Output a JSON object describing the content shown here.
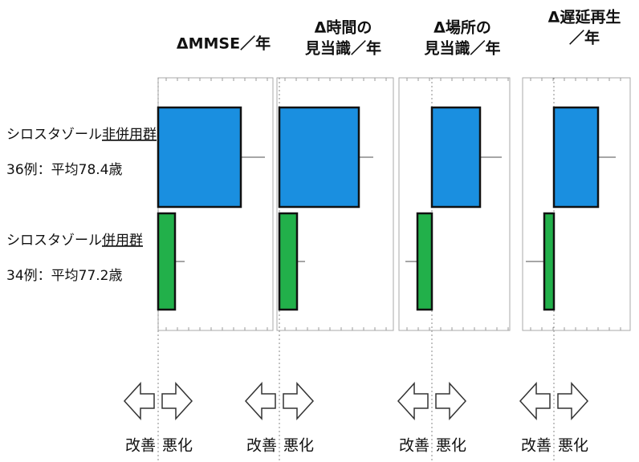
{
  "row_labels": [
    {
      "name": "シロスタゾール",
      "group": "非併用群",
      "detail": "36例：平均78.4歳"
    },
    {
      "name": "シロスタゾール",
      "group": "併用群",
      "detail": "34例：平均77.2歳"
    }
  ],
  "chart_data": [
    {
      "type": "hbar",
      "title": [
        "ΔMMSE／年"
      ],
      "xlim": [
        0,
        143
      ],
      "values": [
        103,
        21
      ],
      "errors": [
        30,
        12
      ],
      "colors": [
        "#1a8fe0",
        "#22b04a"
      ],
      "direction_labels": [
        "改善",
        "悪化"
      ]
    },
    {
      "type": "hbar",
      "title": [
        "Δ時間の",
        "見当識／年"
      ],
      "xlim": [
        -3,
        142
      ],
      "values": [
        99,
        22
      ],
      "errors": [
        18,
        10
      ],
      "colors": [
        "#1a8fe0",
        "#22b04a"
      ],
      "direction_labels": [
        "改善",
        "悪化"
      ]
    },
    {
      "type": "hbar",
      "title": [
        "Δ場所の",
        "見当識／年"
      ],
      "xlim": [
        -41,
        97
      ],
      "values": [
        60,
        -18
      ],
      "errors": [
        27,
        15
      ],
      "colors": [
        "#1a8fe0",
        "#22b04a"
      ],
      "direction_labels": [
        "改善",
        "悪化"
      ]
    },
    {
      "type": "hbar",
      "title": [
        "Δ遅延再生",
        "／年"
      ],
      "xlim": [
        -39,
        95
      ],
      "values": [
        55,
        -12
      ],
      "errors": [
        22,
        23
      ],
      "colors": [
        "#1a8fe0",
        "#22b04a"
      ],
      "direction_labels": [
        "改善",
        "悪化"
      ]
    }
  ]
}
